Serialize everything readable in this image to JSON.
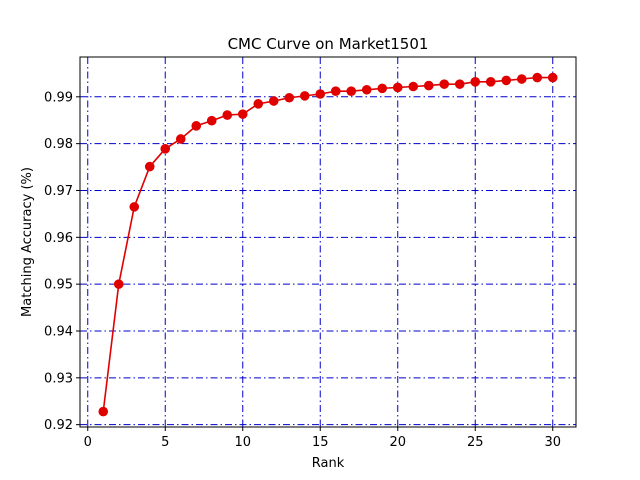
{
  "chart_data": {
    "type": "line",
    "title": "CMC Curve on Market1501",
    "xlabel": "Rank",
    "ylabel": "Matching Accuracy (%)",
    "xlim": [
      -0.5,
      31.5
    ],
    "ylim": [
      0.9195,
      0.9985
    ],
    "xticks": [
      0,
      5,
      10,
      15,
      20,
      25,
      30
    ],
    "yticks": [
      0.92,
      0.93,
      0.94,
      0.95,
      0.96,
      0.97,
      0.98,
      0.99
    ],
    "grid": true,
    "series": [
      {
        "color": "#e00000",
        "marker": "circle",
        "x": [
          1,
          2,
          3,
          4,
          5,
          6,
          7,
          8,
          9,
          10,
          11,
          12,
          13,
          14,
          15,
          16,
          17,
          18,
          19,
          20,
          21,
          22,
          23,
          24,
          25,
          26,
          27,
          28,
          29,
          30
        ],
        "values": [
          0.9228,
          0.95,
          0.9665,
          0.9751,
          0.9789,
          0.981,
          0.9838,
          0.9849,
          0.9861,
          0.9863,
          0.9885,
          0.9891,
          0.9898,
          0.9902,
          0.9906,
          0.9912,
          0.9912,
          0.9915,
          0.9918,
          0.992,
          0.9922,
          0.9924,
          0.9927,
          0.9927,
          0.9932,
          0.9932,
          0.9935,
          0.9938,
          0.9941,
          0.9941
        ]
      }
    ],
    "grid_color": "#0000cc",
    "frame_color": "#000000"
  }
}
